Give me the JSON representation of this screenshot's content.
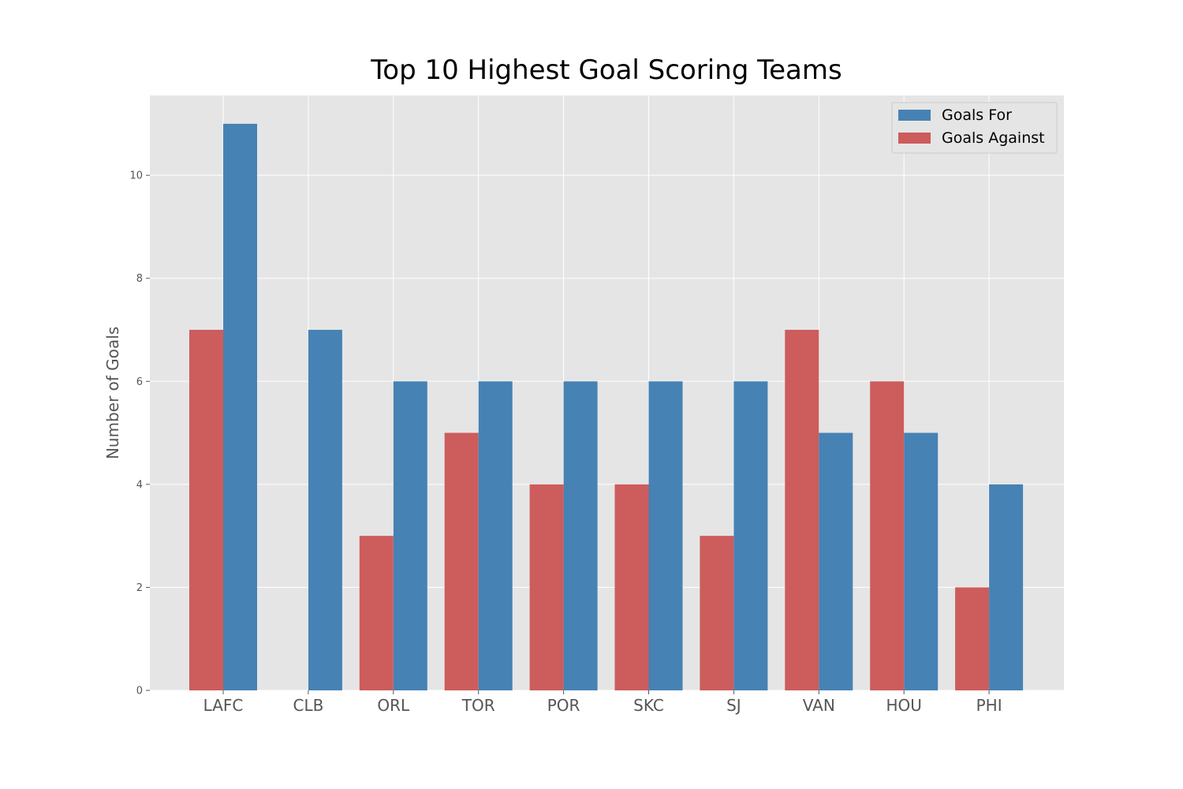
{
  "chart_data": {
    "type": "bar",
    "title": "Top 10 Highest Goal Scoring Teams",
    "xlabel": "",
    "ylabel": "Number of Goals",
    "categories": [
      "LAFC",
      "CLB",
      "ORL",
      "TOR",
      "POR",
      "SKC",
      "SJ",
      "VAN",
      "HOU",
      "PHI"
    ],
    "series": [
      {
        "name": "Goals Against",
        "color": "#cd5c5c",
        "values": [
          7,
          0,
          3,
          5,
          4,
          4,
          3,
          7,
          6,
          2
        ]
      },
      {
        "name": "Goals For",
        "color": "#4682b4",
        "values": [
          11,
          7,
          6,
          6,
          6,
          6,
          6,
          5,
          5,
          4
        ]
      }
    ],
    "legend_order": [
      "Goals For",
      "Goals Against"
    ],
    "legend_position": "top-right",
    "ylim": [
      0,
      11.55
    ],
    "yticks": [
      0,
      2,
      4,
      6,
      8,
      10
    ],
    "grid": true,
    "background": "#e5e5e5",
    "grid_color": "#ffffff"
  }
}
